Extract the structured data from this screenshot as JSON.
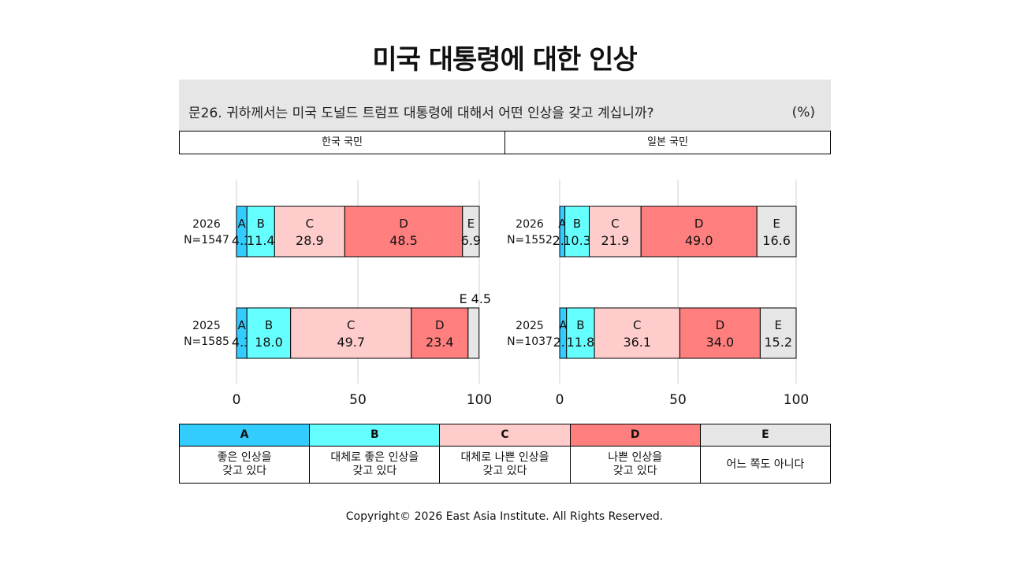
{
  "title": "미국 대통령에 대한 인상",
  "question": "문26. 귀하께서는 미국 도널드 트럼프 대통령에 대해서 어떤 인상을 갖고 계십니까?",
  "unit": "(%)",
  "groups": [
    "한국 국민",
    "일본 국민"
  ],
  "colors": {
    "A": "#33ccff",
    "B": "#66ffff",
    "C": "#ffcccc",
    "D": "#ff7f7f",
    "E": "#e6e6e6"
  },
  "legend": [
    {
      "key": "A",
      "label": "좋은 인상을\n갖고 있다"
    },
    {
      "key": "B",
      "label": "대체로 좋은 인상을\n갖고 있다"
    },
    {
      "key": "C",
      "label": "대체로 나쁜 인상을\n갖고 있다"
    },
    {
      "key": "D",
      "label": "나쁜 인상을\n갖고 있다"
    },
    {
      "key": "E",
      "label": "어느 쪽도 아니다"
    }
  ],
  "copyright": "Copyright© 2026 East Asia Institute. All Rights Reserved.",
  "chart_data": [
    {
      "type": "bar",
      "stacked": true,
      "orientation": "horizontal",
      "group": "한국 국민",
      "categories": [
        {
          "year": "2026",
          "n": "N=1547"
        },
        {
          "year": "2025",
          "n": "N=1585"
        }
      ],
      "series": [
        {
          "name": "A",
          "values": [
            4.3,
            4.3
          ]
        },
        {
          "name": "B",
          "values": [
            11.4,
            18.0
          ]
        },
        {
          "name": "C",
          "values": [
            28.9,
            49.7
          ]
        },
        {
          "name": "D",
          "values": [
            48.5,
            23.4
          ]
        },
        {
          "name": "E",
          "values": [
            6.9,
            4.5
          ]
        }
      ],
      "xlim": [
        0,
        100
      ],
      "xticks": [
        0,
        50,
        100
      ],
      "grid": true
    },
    {
      "type": "bar",
      "stacked": true,
      "orientation": "horizontal",
      "group": "일본 국민",
      "categories": [
        {
          "year": "2026",
          "n": "N=1552"
        },
        {
          "year": "2025",
          "n": "N=1037"
        }
      ],
      "series": [
        {
          "name": "A",
          "values": [
            2.2,
            2.9
          ]
        },
        {
          "name": "B",
          "values": [
            10.3,
            11.8
          ]
        },
        {
          "name": "C",
          "values": [
            21.9,
            36.1
          ]
        },
        {
          "name": "D",
          "values": [
            49.0,
            34.0
          ]
        },
        {
          "name": "E",
          "values": [
            16.6,
            15.2
          ]
        }
      ],
      "xlim": [
        0,
        100
      ],
      "xticks": [
        0,
        50,
        100
      ],
      "grid": true
    }
  ]
}
